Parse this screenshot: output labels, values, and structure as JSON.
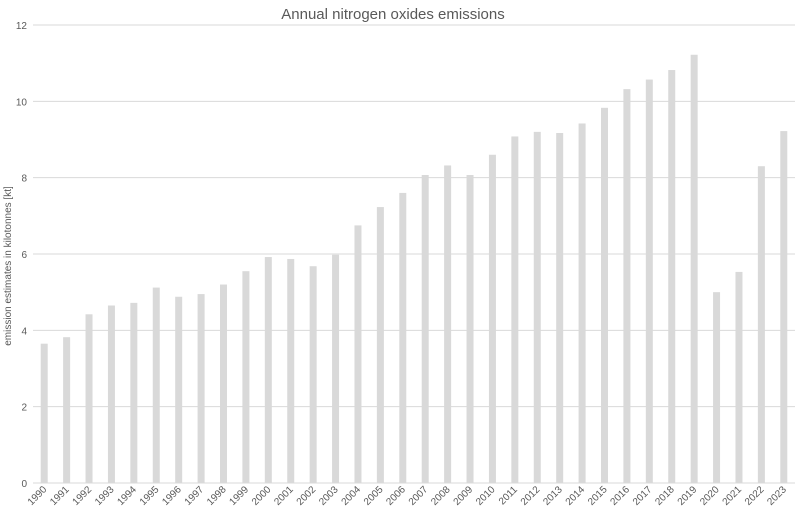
{
  "chart_data": {
    "type": "bar",
    "title": "Annual nitrogen oxides emissions",
    "xlabel": "",
    "ylabel": "emission estimates in kilotonnes [kt]",
    "ylim": [
      0,
      12
    ],
    "yticks": [
      0,
      2,
      4,
      6,
      8,
      10,
      12
    ],
    "grid": true,
    "legend": "none",
    "bar_color": "#d9d9d9",
    "categories": [
      "1990",
      "1991",
      "1992",
      "1993",
      "1994",
      "1995",
      "1996",
      "1997",
      "1998",
      "1999",
      "2000",
      "2001",
      "2002",
      "2003",
      "2004",
      "2005",
      "2006",
      "2007",
      "2008",
      "2009",
      "2010",
      "2011",
      "2012",
      "2013",
      "2014",
      "2015",
      "2016",
      "2017",
      "2018",
      "2019",
      "2020",
      "2021",
      "2022",
      "2023"
    ],
    "values": [
      3.65,
      3.82,
      4.42,
      4.65,
      4.72,
      5.12,
      4.88,
      4.95,
      5.2,
      5.55,
      5.92,
      5.87,
      5.68,
      5.98,
      6.75,
      7.23,
      7.6,
      8.07,
      8.32,
      8.07,
      8.6,
      9.08,
      9.2,
      9.17,
      9.42,
      9.83,
      10.32,
      10.57,
      10.82,
      11.22,
      5.0,
      5.53,
      8.3,
      9.22
    ]
  }
}
